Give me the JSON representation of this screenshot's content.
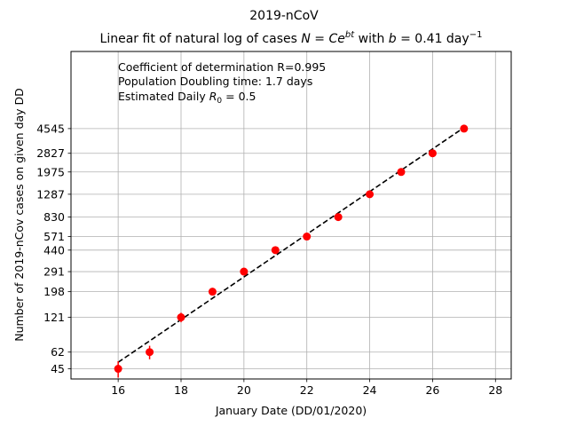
{
  "chart_data": {
    "type": "scatter",
    "title": "2019-nCoV",
    "subtitle": {
      "prefix": "Linear fit of natural log of cases ",
      "formula_lhs": "N",
      "formula_eq": " = ",
      "formula_c": "Ce",
      "formula_exp": "bt",
      "middle": " with ",
      "b_sym": "b",
      "b_val": " = 0.41 day",
      "b_exp": "−1"
    },
    "annotations": {
      "line1": "Coefficient of determination R=0.995",
      "line2": "Population Doubling time: 1.7 days",
      "line3_prefix": "Estimated Daily ",
      "line3_sym": "R",
      "line3_sub": "0",
      "line3_suffix": " = 0.5"
    },
    "xlabel": "January Date (DD/01/2020)",
    "ylabel": "Number of 2019-nCov cases on given day DD",
    "xlim": [
      14.5,
      28.5
    ],
    "ylim_log": [
      37,
      20000
    ],
    "y_scale": "log",
    "grid": true,
    "x_ticks": [
      16,
      18,
      20,
      22,
      24,
      26,
      28
    ],
    "y_ticks": [
      45,
      62,
      121,
      198,
      291,
      440,
      571,
      830,
      1287,
      1975,
      2827,
      4545
    ],
    "marker_color": "#ff0000",
    "fit_color": "#000000",
    "x": [
      16,
      17,
      18,
      19,
      20,
      21,
      22,
      23,
      24,
      25,
      26,
      27
    ],
    "y": [
      45,
      62,
      121,
      198,
      291,
      440,
      571,
      830,
      1287,
      1975,
      2827,
      4545
    ],
    "yerr": [
      7,
      8,
      11,
      14,
      17,
      21,
      24,
      29,
      36,
      44,
      53,
      67
    ],
    "fit": {
      "x": [
        16,
        27
      ],
      "y": [
        51,
        4634
      ]
    }
  }
}
